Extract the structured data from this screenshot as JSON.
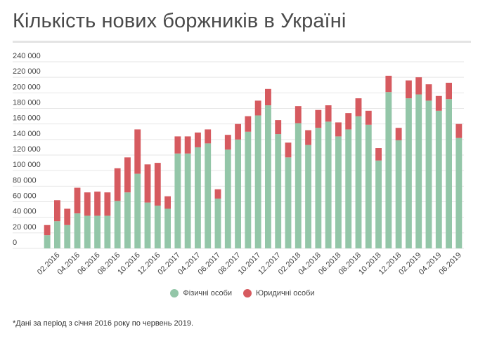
{
  "title": "Кількість нових боржників в Україні",
  "footnote": "*Дані за період з січня 2016 року по червень 2019.",
  "colors": {
    "individuals": "#93c6a8",
    "legal": "#d65a5f",
    "grid": "#e6e6e6"
  },
  "chart_data": {
    "type": "bar",
    "stacked": true,
    "title": "Кількість нових боржників в Україні",
    "xlabel": "",
    "ylabel": "",
    "ylim": [
      0,
      240000
    ],
    "yticks": [
      0,
      20000,
      40000,
      60000,
      80000,
      100000,
      120000,
      140000,
      160000,
      180000,
      200000,
      220000,
      240000
    ],
    "ytick_labels": [
      "0",
      "20 000",
      "40 000",
      "60 000",
      "80 000",
      "100 000",
      "120 000",
      "140 000",
      "160 000",
      "180 000",
      "200 000",
      "220 000",
      "240 000"
    ],
    "grid": true,
    "legend_position": "bottom",
    "categories": [
      "01.2016",
      "02.2016",
      "03.2016",
      "04.2016",
      "05.2016",
      "06.2016",
      "07.2016",
      "08.2016",
      "09.2016",
      "10.2016",
      "11.2016",
      "12.2016",
      "01.2017",
      "02.2017",
      "03.2017",
      "04.2017",
      "05.2017",
      "06.2017",
      "07.2017",
      "08.2017",
      "09.2017",
      "10.2017",
      "11.2017",
      "12.2017",
      "01.2018",
      "02.2018",
      "03.2018",
      "04.2018",
      "05.2018",
      "06.2018",
      "07.2018",
      "08.2018",
      "09.2018",
      "10.2018",
      "11.2018",
      "12.2018",
      "01.2019",
      "02.2019",
      "03.2019",
      "04.2019",
      "05.2019",
      "06.2019"
    ],
    "xtick_labels": [
      "02.2016",
      "04.2016",
      "06.2016",
      "08.2016",
      "10.2016",
      "12.2016",
      "02.2017",
      "04.2017",
      "06.2017",
      "08.2017",
      "10.2017",
      "12.2017",
      "02.2018",
      "04.2018",
      "06.2018",
      "08.2018",
      "10.2018",
      "12.2018",
      "02.2019",
      "04.2019",
      "06.2019"
    ],
    "xtick_indices": [
      1,
      3,
      5,
      7,
      9,
      11,
      13,
      15,
      17,
      19,
      21,
      23,
      25,
      27,
      29,
      31,
      33,
      35,
      37,
      39,
      41
    ],
    "series": [
      {
        "name": "Фізичні особи",
        "values": [
          17000,
          35000,
          30000,
          45000,
          42000,
          42000,
          42000,
          61000,
          72000,
          96000,
          59000,
          55000,
          51000,
          122000,
          122000,
          130000,
          135000,
          64000,
          127000,
          140000,
          150000,
          171000,
          184000,
          147000,
          117000,
          161000,
          133000,
          155000,
          163000,
          144000,
          153000,
          170000,
          159000,
          113000,
          201000,
          139000,
          193000,
          198000,
          190000,
          177000,
          192000,
          142000
        ]
      },
      {
        "name": "Юридичні особи",
        "values": [
          13000,
          27000,
          21000,
          33000,
          30000,
          31000,
          30000,
          42000,
          45000,
          57000,
          49000,
          55000,
          16000,
          22000,
          22000,
          19000,
          18000,
          12000,
          19000,
          20000,
          20000,
          19000,
          21000,
          18000,
          19000,
          22000,
          19000,
          23000,
          21000,
          18000,
          21000,
          23000,
          18000,
          16000,
          21000,
          16000,
          23000,
          22000,
          21000,
          19000,
          21000,
          18000
        ]
      }
    ]
  }
}
